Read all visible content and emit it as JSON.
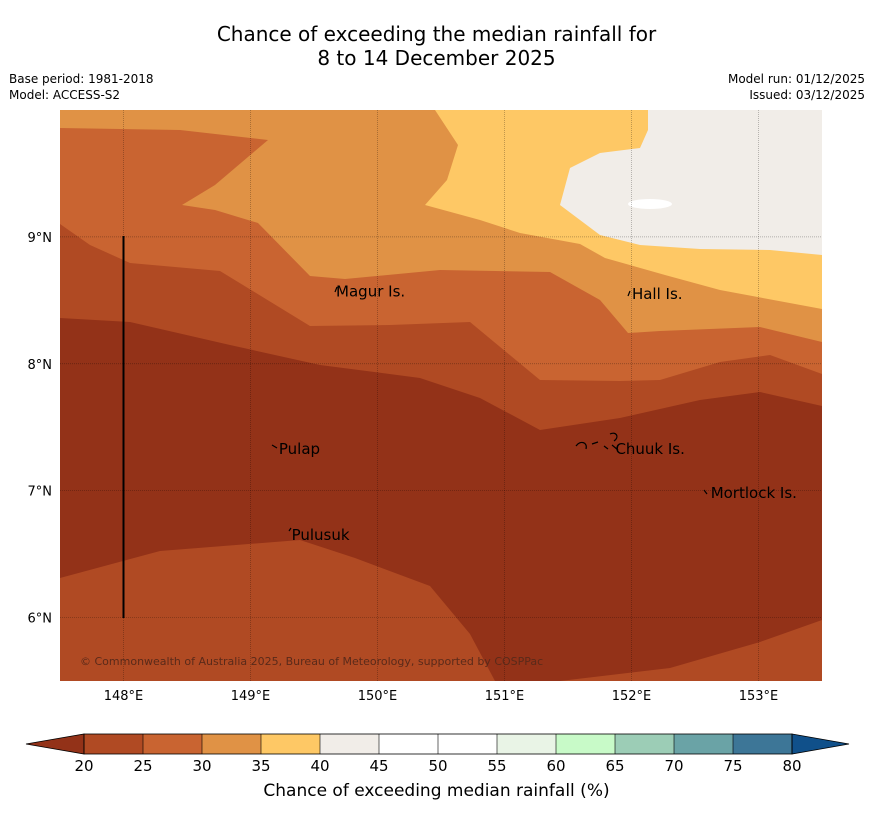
{
  "header": {
    "title_line1": "Chance of exceeding the median rainfall for",
    "title_line2": "8 to 14 December 2025",
    "base_period": "Base period: 1981-2018",
    "model": "Model: ACCESS-S2",
    "model_run": "Model run: 01/12/2025",
    "issued": "Issued: 03/12/2025"
  },
  "map": {
    "lon_range": [
      147.5,
      153.5
    ],
    "lat_range": [
      5.5,
      10.0
    ],
    "lon_labels": [
      "148°E",
      "149°E",
      "150°E",
      "151°E",
      "152°E",
      "153°E"
    ],
    "lat_labels": [
      "9°N",
      "8°N",
      "7°N",
      "6°N"
    ],
    "places": [
      {
        "name": "Magur Is.",
        "lon": 149.65,
        "lat": 8.57
      },
      {
        "name": "Hall Is.",
        "lon": 151.98,
        "lat": 8.55
      },
      {
        "name": "Pulap",
        "lon": 149.2,
        "lat": 7.33
      },
      {
        "name": "Chuuk Is.",
        "lon": 151.85,
        "lat": 7.33
      },
      {
        "name": "Mortlock Is.",
        "lon": 152.6,
        "lat": 6.98
      },
      {
        "name": "Pulusuk",
        "lon": 149.3,
        "lat": 6.65
      }
    ],
    "copyright": "© Commonwealth of Australia 2025, Bureau of Meteorology, supported by COSPPac"
  },
  "colorbar": {
    "title": "Chance of exceeding median rainfall (%)",
    "ticks": [
      "20",
      "25",
      "30",
      "35",
      "40",
      "45",
      "50",
      "55",
      "60",
      "65",
      "70",
      "75",
      "80"
    ],
    "colors": {
      "below20": "#933218",
      "b20_25": "#b04a23",
      "b25_30": "#c96431",
      "b30_35": "#e09245",
      "b35_40": "#fec865",
      "b40_45": "#f1ede8",
      "b45_50": "#ffffff",
      "b50_55": "#ffffff",
      "b55_60": "#e9f4e6",
      "b60_65": "#c8fac8",
      "b65_70": "#9ccdb6",
      "b70_75": "#6aa3a6",
      "b75_80": "#3d7697",
      "above80": "#10508a"
    }
  }
}
